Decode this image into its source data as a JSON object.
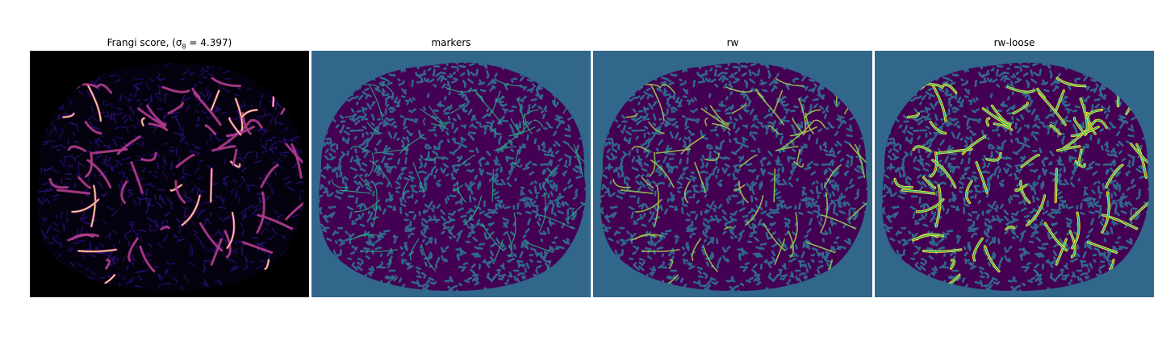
{
  "figure": {
    "panels": [
      {
        "id": "frangi",
        "title": "Frangi score, (σ",
        "title_sub": "8",
        "title_rest": " = 4.397)",
        "colormap": "magma"
      },
      {
        "id": "markers",
        "title": "markers",
        "colormap": "viridis"
      },
      {
        "id": "rw",
        "title": "rw",
        "colormap": "viridis"
      },
      {
        "id": "rw-loose",
        "title": "rw-loose",
        "colormap": "viridis"
      }
    ]
  },
  "colors": {
    "frangi_background": "#000000",
    "frangi_low": "#2a0f7a",
    "frangi_mid": "#b43c8e",
    "frangi_high": "#fce38a",
    "seg_background": "#31678a",
    "seg_tissue": "#440154",
    "seg_vessel_marker": "#2ab07f",
    "seg_vessel": "#fde725"
  }
}
